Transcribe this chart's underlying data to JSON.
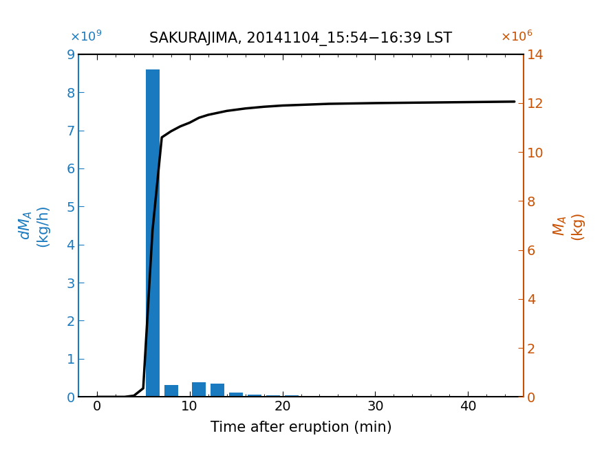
{
  "title": "SAKURAJIMA, 20141104_15:54−16:39 LST",
  "xlabel": "Time after eruption (min)",
  "bar_color": "#1a7abf",
  "line_color": "#000000",
  "left_axis_color": "#1a7abf",
  "right_axis_color": "#c85000",
  "xlim": [
    -2,
    46
  ],
  "ylim_left": [
    0,
    9000000000.0
  ],
  "ylim_right": [
    0,
    14000000.0
  ],
  "bar_centers": [
    4,
    6,
    8,
    9,
    11,
    13,
    15,
    17,
    19,
    21,
    23,
    25,
    27,
    29,
    31,
    33,
    35,
    37,
    39,
    41,
    43,
    45
  ],
  "bar_heights": [
    30000000.0,
    8600000000.0,
    320000000.0,
    0,
    380000000.0,
    350000000.0,
    120000000.0,
    60000000.0,
    50000000.0,
    40000000.0,
    20000000.0,
    15000000.0,
    10000000.0,
    0,
    5000000.0,
    0,
    0,
    0,
    0,
    0,
    0,
    0
  ],
  "bar_width": 1.5,
  "line_x": [
    0,
    3,
    4,
    5,
    6,
    7,
    8,
    9,
    10,
    11,
    12,
    14,
    16,
    18,
    20,
    25,
    30,
    35,
    40,
    45
  ],
  "line_y": [
    0,
    0,
    50000.0,
    350000.0,
    6800000.0,
    10600000.0,
    10850000.0,
    11050000.0,
    11200000.0,
    11400000.0,
    11520000.0,
    11680000.0,
    11780000.0,
    11850000.0,
    11900000.0,
    11970000.0,
    12000000.0,
    12020000.0,
    12040000.0,
    12060000.0
  ],
  "left_yticks": [
    0,
    1000000000.0,
    2000000000.0,
    3000000000.0,
    4000000000.0,
    5000000000.0,
    6000000000.0,
    7000000000.0,
    8000000000.0,
    9000000000.0
  ],
  "left_yticklabels": [
    "0",
    "1",
    "2",
    "3",
    "4",
    "5",
    "6",
    "7",
    "8",
    "9"
  ],
  "right_yticks": [
    0,
    2000000.0,
    4000000.0,
    6000000.0,
    8000000.0,
    10000000.0,
    12000000.0,
    14000000.0
  ],
  "right_yticklabels": [
    "0",
    "2",
    "4",
    "6",
    "8",
    "10",
    "12",
    "14"
  ],
  "xticks": [
    0,
    10,
    20,
    30,
    40
  ],
  "tick_fontsize": 14,
  "label_fontsize": 15,
  "title_fontsize": 15
}
